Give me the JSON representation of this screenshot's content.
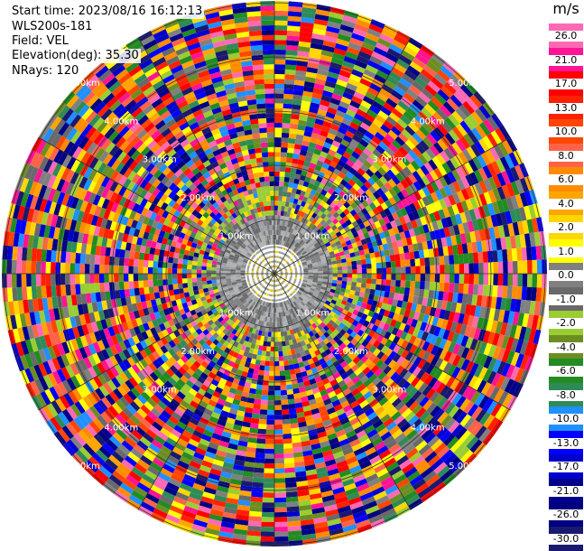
{
  "header": {
    "start_time": "Start time: 2023/08/16 16:12:13",
    "instrument": "WLS200s-181",
    "field": "Field: VEL",
    "elevation": "Elevation(deg): 35.30",
    "nrays": "NRays: 120"
  },
  "colorbar": {
    "unit": "m/s",
    "labels": [
      "26.0",
      "21.0",
      "17.0",
      "13.0",
      "10.0",
      "8.0",
      "6.0",
      "4.0",
      "2.0",
      "1.0",
      "0.0",
      "-1.0",
      "-2.0",
      "-4.0",
      "-6.0",
      "-8.0",
      "-10.0",
      "-13.0",
      "-17.0",
      "-21.0",
      "-26.0",
      "-30.0"
    ],
    "colors": [
      "#ff69b4",
      "#ff1493",
      "#ff0000",
      "#ff2000",
      "#ff4500",
      "#ff6347",
      "#ff8c00",
      "#ffa500",
      "#ffd700",
      "#ffff00",
      "#808080",
      "#696969",
      "#9acd32",
      "#6b8e23",
      "#228b22",
      "#2e8b57",
      "#1e90ff",
      "#0000ff",
      "#0000cd",
      "#00008b",
      "#000080",
      "#191970"
    ]
  },
  "chart_data": {
    "type": "heatmap",
    "subtype": "ppi",
    "field": "VEL",
    "unit": "m/s",
    "elevation_deg": 35.3,
    "nrays": 120,
    "range_rings_km": [
      "1.00km",
      "2.00km",
      "3.00km",
      "4.00km",
      "5.00km"
    ],
    "color_scale_min": -30.0,
    "color_scale_max": 26.0,
    "grid": true
  }
}
